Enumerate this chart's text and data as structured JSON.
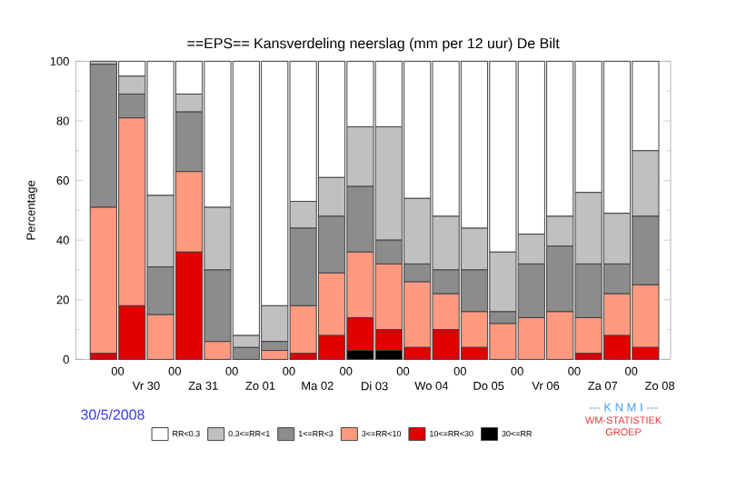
{
  "chart_data": {
    "type": "bar",
    "stacked": true,
    "title": "==EPS==   Kansverdeling neerslag (mm per 12 uur) De Bilt",
    "ylabel": "Percentage",
    "categories": [
      null,
      null,
      null,
      null,
      null,
      null,
      null,
      null,
      null,
      null,
      null,
      null,
      null,
      null,
      null,
      null,
      null,
      null,
      null,
      null
    ],
    "ylim": [
      0,
      100
    ],
    "yticks": [
      0,
      20,
      40,
      60,
      80,
      100
    ],
    "legend": "bottom",
    "series": [
      {
        "name": "30<=RR",
        "color": "#000000",
        "values": [
          0,
          0,
          0,
          0,
          0,
          0,
          0,
          0,
          0,
          3,
          3,
          0,
          0,
          0,
          0,
          0,
          0,
          0,
          0,
          0
        ]
      },
      {
        "name": "10<=RR<30",
        "color": "#e00000",
        "values": [
          2,
          18,
          0,
          36,
          0,
          0,
          0,
          2,
          8,
          11,
          7,
          4,
          10,
          4,
          0,
          0,
          0,
          2,
          8,
          4
        ]
      },
      {
        "name": "3<=RR<10",
        "color": "#ff9980",
        "values": [
          49,
          63,
          15,
          27,
          6,
          0,
          3,
          16,
          21,
          22,
          22,
          22,
          12,
          12,
          12,
          14,
          16,
          12,
          14,
          21
        ]
      },
      {
        "name": "1<=RR<3",
        "color": "#8c8c8c",
        "values": [
          48,
          8,
          16,
          20,
          24,
          4,
          3,
          26,
          19,
          22,
          8,
          6,
          8,
          14,
          4,
          18,
          22,
          18,
          10,
          23
        ]
      },
      {
        "name": "0.3<=RR<1",
        "color": "#c0c0c0",
        "values": [
          1,
          6,
          24,
          6,
          21,
          4,
          12,
          9,
          13,
          20,
          38,
          22,
          18,
          14,
          20,
          10,
          10,
          24,
          17,
          22
        ]
      },
      {
        "name": "RR<0.3",
        "color": "#ffffff",
        "values": [
          0,
          5,
          45,
          11,
          49,
          92,
          82,
          47,
          39,
          22,
          22,
          46,
          52,
          56,
          64,
          58,
          52,
          44,
          51,
          30
        ]
      }
    ],
    "annotations": [
      "30/5/2008",
      "--- K N M I ---",
      "WM-STATISTIEK GROEP",
      "00",
      "Vr 30",
      "00",
      "Za 31",
      "00",
      "Zo 01",
      "00",
      "Ma 02",
      "00",
      "Di 03",
      "00",
      "Wo 04",
      "00",
      "Do 05",
      "00",
      "Vr 06",
      "00",
      "Za 07",
      "00",
      "Zo 08"
    ]
  }
}
